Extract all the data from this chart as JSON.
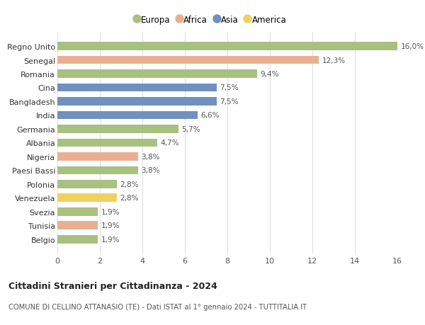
{
  "categories": [
    "Regno Unito",
    "Senegal",
    "Romania",
    "Cina",
    "Bangladesh",
    "India",
    "Germania",
    "Albania",
    "Nigeria",
    "Paesi Bassi",
    "Polonia",
    "Venezuela",
    "Svezia",
    "Tunisia",
    "Belgio"
  ],
  "values": [
    16.0,
    12.3,
    9.4,
    7.5,
    7.5,
    6.6,
    5.7,
    4.7,
    3.8,
    3.8,
    2.8,
    2.8,
    1.9,
    1.9,
    1.9
  ],
  "labels": [
    "16,0%",
    "12,3%",
    "9,4%",
    "7,5%",
    "7,5%",
    "6,6%",
    "5,7%",
    "4,7%",
    "3,8%",
    "3,8%",
    "2,8%",
    "2,8%",
    "1,9%",
    "1,9%",
    "1,9%"
  ],
  "continents": [
    "Europa",
    "Africa",
    "Europa",
    "Asia",
    "Asia",
    "Asia",
    "Europa",
    "Europa",
    "Africa",
    "Europa",
    "Europa",
    "America",
    "Europa",
    "Africa",
    "Europa"
  ],
  "colors": {
    "Europa": "#a8c080",
    "Africa": "#e8b090",
    "Asia": "#7090c0",
    "America": "#f0d060"
  },
  "legend_order": [
    "Europa",
    "Africa",
    "Asia",
    "America"
  ],
  "title": "Cittadini Stranieri per Cittadinanza - 2024",
  "subtitle": "COMUNE DI CELLINO ATTANASIO (TE) - Dati ISTAT al 1° gennaio 2024 - TUTTITALIA.IT",
  "xlim": [
    0,
    16
  ],
  "xticks": [
    0,
    2,
    4,
    6,
    8,
    10,
    12,
    14,
    16
  ],
  "background_color": "#ffffff",
  "grid_color": "#e0e0e0"
}
